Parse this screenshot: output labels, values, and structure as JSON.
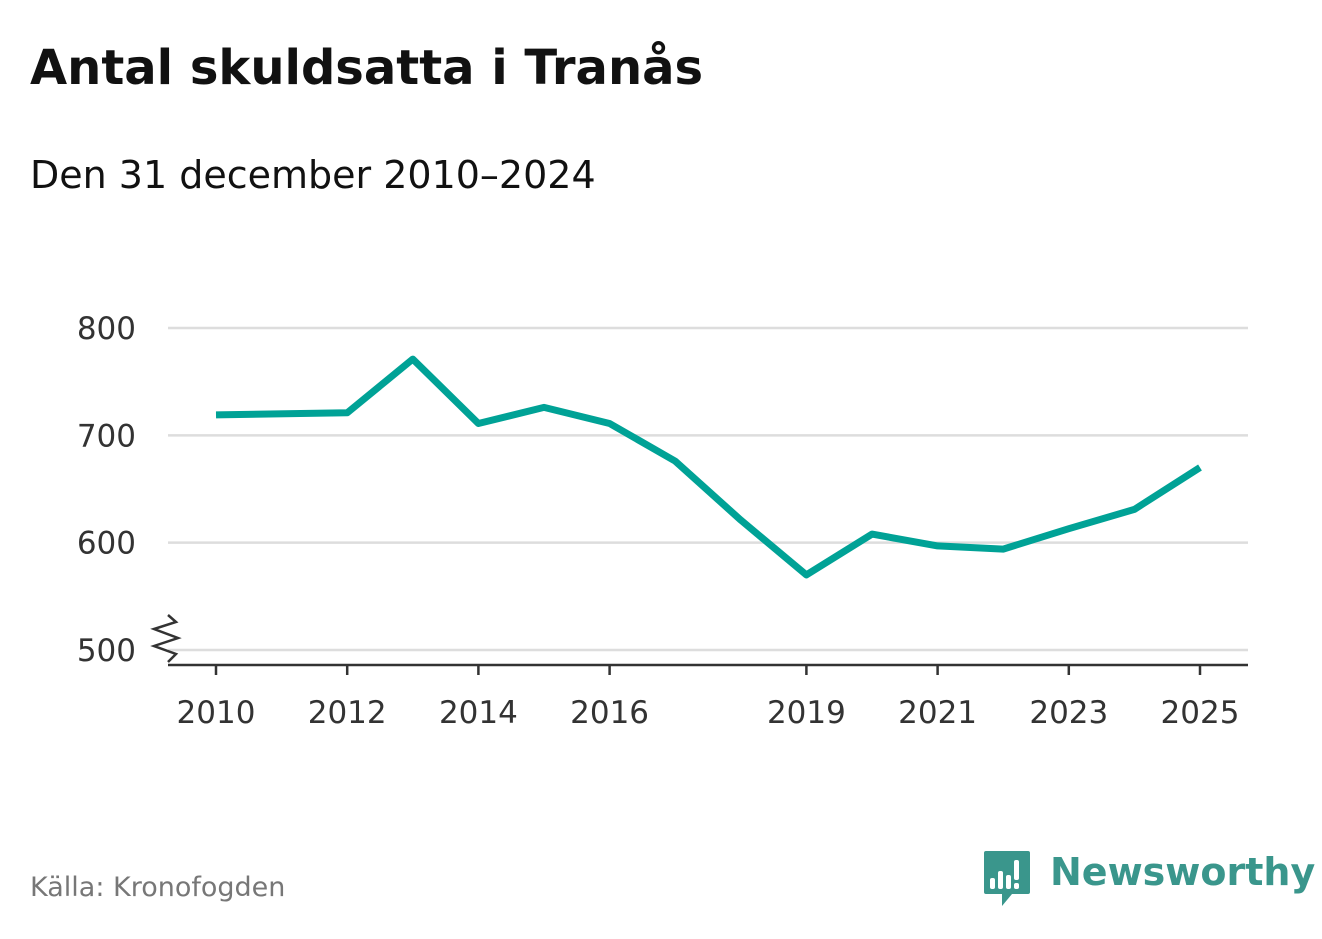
{
  "title": "Antal skuldsatta i Tranås",
  "subtitle": "Den 31 december 2010–2024",
  "source": "Källa: Kronofogden",
  "brand": {
    "name": "Newsworthy",
    "color": "#3a968c",
    "icon": "bar-chart-speech-bubble-icon"
  },
  "colors": {
    "line": "#00a296",
    "grid": "#dddddd",
    "axis": "#333333"
  },
  "chart_data": {
    "type": "line",
    "title": "Antal skuldsatta i Tranås",
    "xlabel": "",
    "ylabel": "",
    "x": [
      2010,
      2012,
      2013,
      2014,
      2015,
      2016,
      2017,
      2018,
      2019,
      2020,
      2021,
      2022,
      2023,
      2024,
      2025
    ],
    "series": [
      {
        "name": "Antal skuldsatta",
        "values": [
          719,
          721,
          771,
          711,
          726,
          711,
          676,
          621,
          570,
          608,
          597,
          594,
          613,
          631,
          670
        ]
      }
    ],
    "xticks": [
      "2010",
      "2012",
      "2014",
      "2016",
      "2019",
      "2021",
      "2023",
      "2025"
    ],
    "yticks": [
      "500",
      "600",
      "700",
      "800"
    ],
    "xlim": [
      2010,
      2025
    ],
    "ylim": [
      500,
      800
    ],
    "y_axis_break": true,
    "grid": "horizontal"
  }
}
